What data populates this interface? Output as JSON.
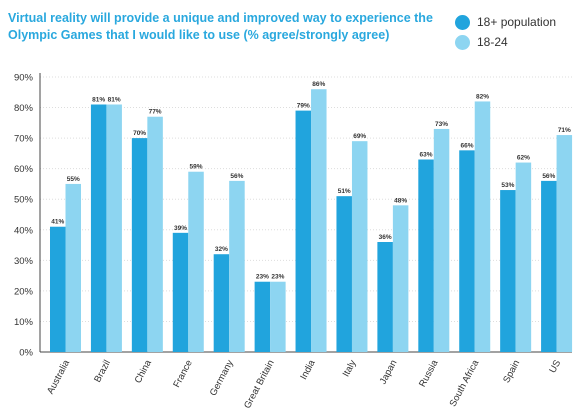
{
  "title": "Virtual reality will provide a unique and improved way to experience the Olympic Games that I would like to use (% agree/strongly agree)",
  "colors": {
    "series1": "#21a4dd",
    "series2": "#8dd5f1",
    "grid": "#dddddd",
    "axis": "#444444",
    "text": "#333333"
  },
  "chart_data": {
    "type": "bar",
    "title": "Virtual reality will provide a unique and improved way to experience the Olympic Games that I would like to use (% agree/strongly agree)",
    "xlabel": "",
    "ylabel": "",
    "ylim": [
      0,
      90
    ],
    "yticks": [
      0,
      10,
      20,
      30,
      40,
      50,
      60,
      70,
      80,
      90
    ],
    "ytick_labels": [
      "0%",
      "10%",
      "20%",
      "30%",
      "40%",
      "50%",
      "60%",
      "70%",
      "80%",
      "90%"
    ],
    "grid": true,
    "legend": "top-right",
    "categories": [
      "Australia",
      "Brazil",
      "China",
      "France",
      "Germany",
      "Great Britain",
      "India",
      "Italy",
      "Japan",
      "Russia",
      "South Africa",
      "Spain",
      "US"
    ],
    "series": [
      {
        "name": "18+ population",
        "values": [
          41,
          81,
          70,
          39,
          32,
          23,
          79,
          51,
          36,
          63,
          66,
          53,
          56
        ]
      },
      {
        "name": "18-24",
        "values": [
          55,
          81,
          77,
          59,
          56,
          23,
          86,
          69,
          48,
          73,
          82,
          62,
          71
        ]
      }
    ]
  }
}
